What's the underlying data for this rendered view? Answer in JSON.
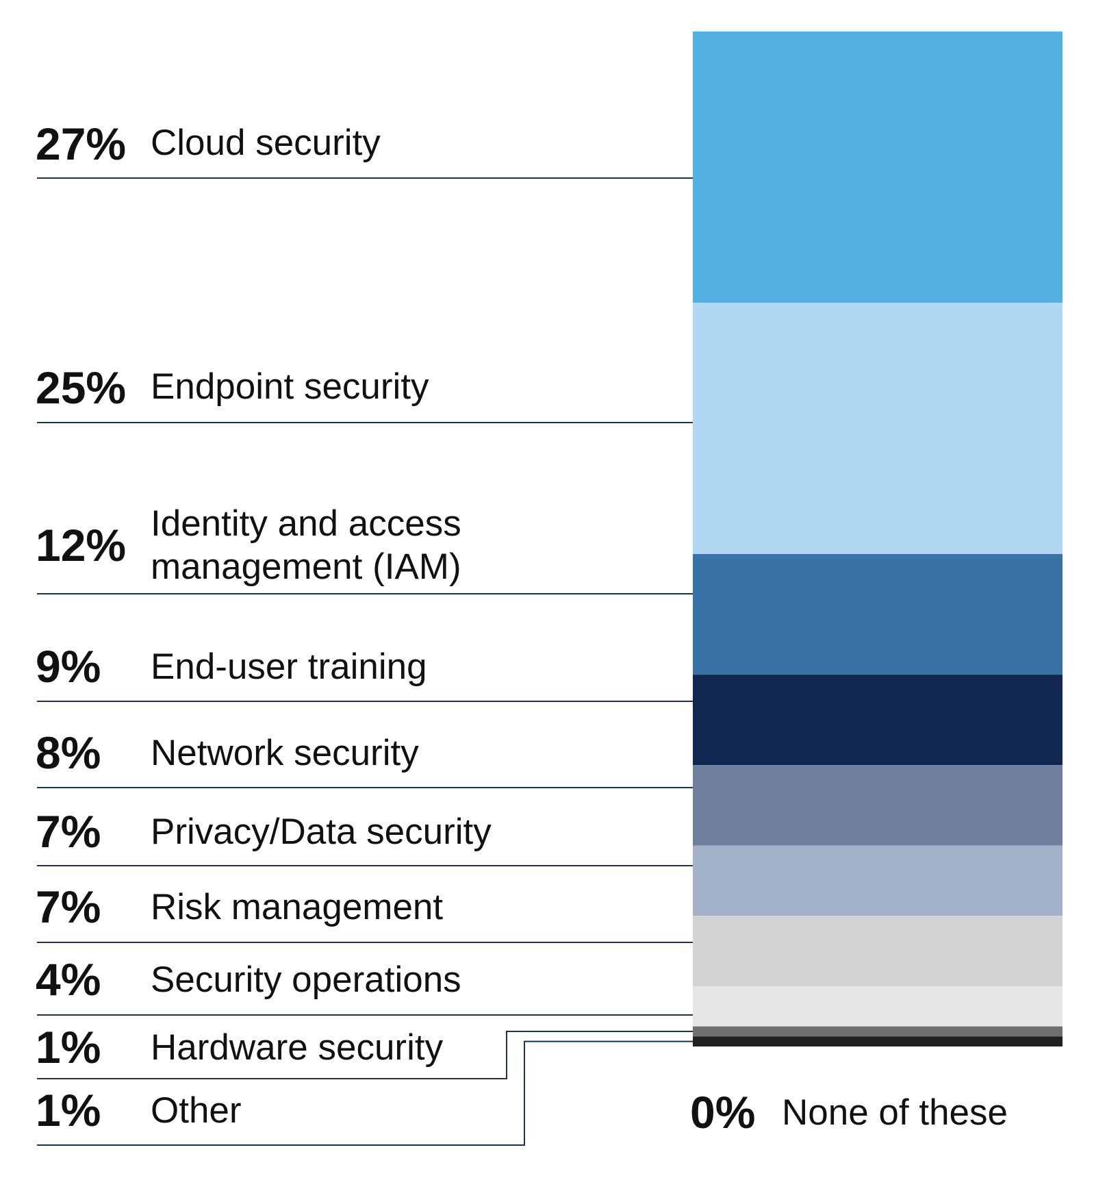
{
  "chart_data": {
    "type": "bar",
    "orientation": "stacked-vertical",
    "title": "",
    "xlabel": "",
    "ylabel": "",
    "ylim": [
      0,
      101
    ],
    "grid": false,
    "legend": "left",
    "categories": [
      "Cloud security",
      "Endpoint security",
      "Identity and access management (IAM)",
      "End-user training",
      "Network security",
      "Privacy/Data security",
      "Risk management",
      "Security operations",
      "Hardware security",
      "Other",
      "None of these"
    ],
    "label_lines": [
      [
        "Cloud security"
      ],
      [
        "Endpoint security"
      ],
      [
        "Identity and access",
        "management (IAM)"
      ],
      [
        "End-user training"
      ],
      [
        "Network security"
      ],
      [
        "Privacy/Data security"
      ],
      [
        "Risk management"
      ],
      [
        "Security operations"
      ],
      [
        "Hardware security"
      ],
      [
        "Other"
      ],
      [
        "None of these"
      ]
    ],
    "values": [
      27,
      25,
      12,
      9,
      8,
      7,
      7,
      4,
      1,
      1,
      0
    ],
    "value_labels": [
      "27%",
      "25%",
      "12%",
      "9%",
      "8%",
      "7%",
      "7%",
      "4%",
      "1%",
      "1%",
      "0%"
    ],
    "colors": [
      "#52b0e2",
      "#b0d8f2",
      "#3872a6",
      "#112752",
      "#707f9e",
      "#a3b1c9",
      "#d4d4d4",
      "#e6e7e9",
      "#6f6f6f",
      "#222222",
      "#ffffff"
    ]
  }
}
